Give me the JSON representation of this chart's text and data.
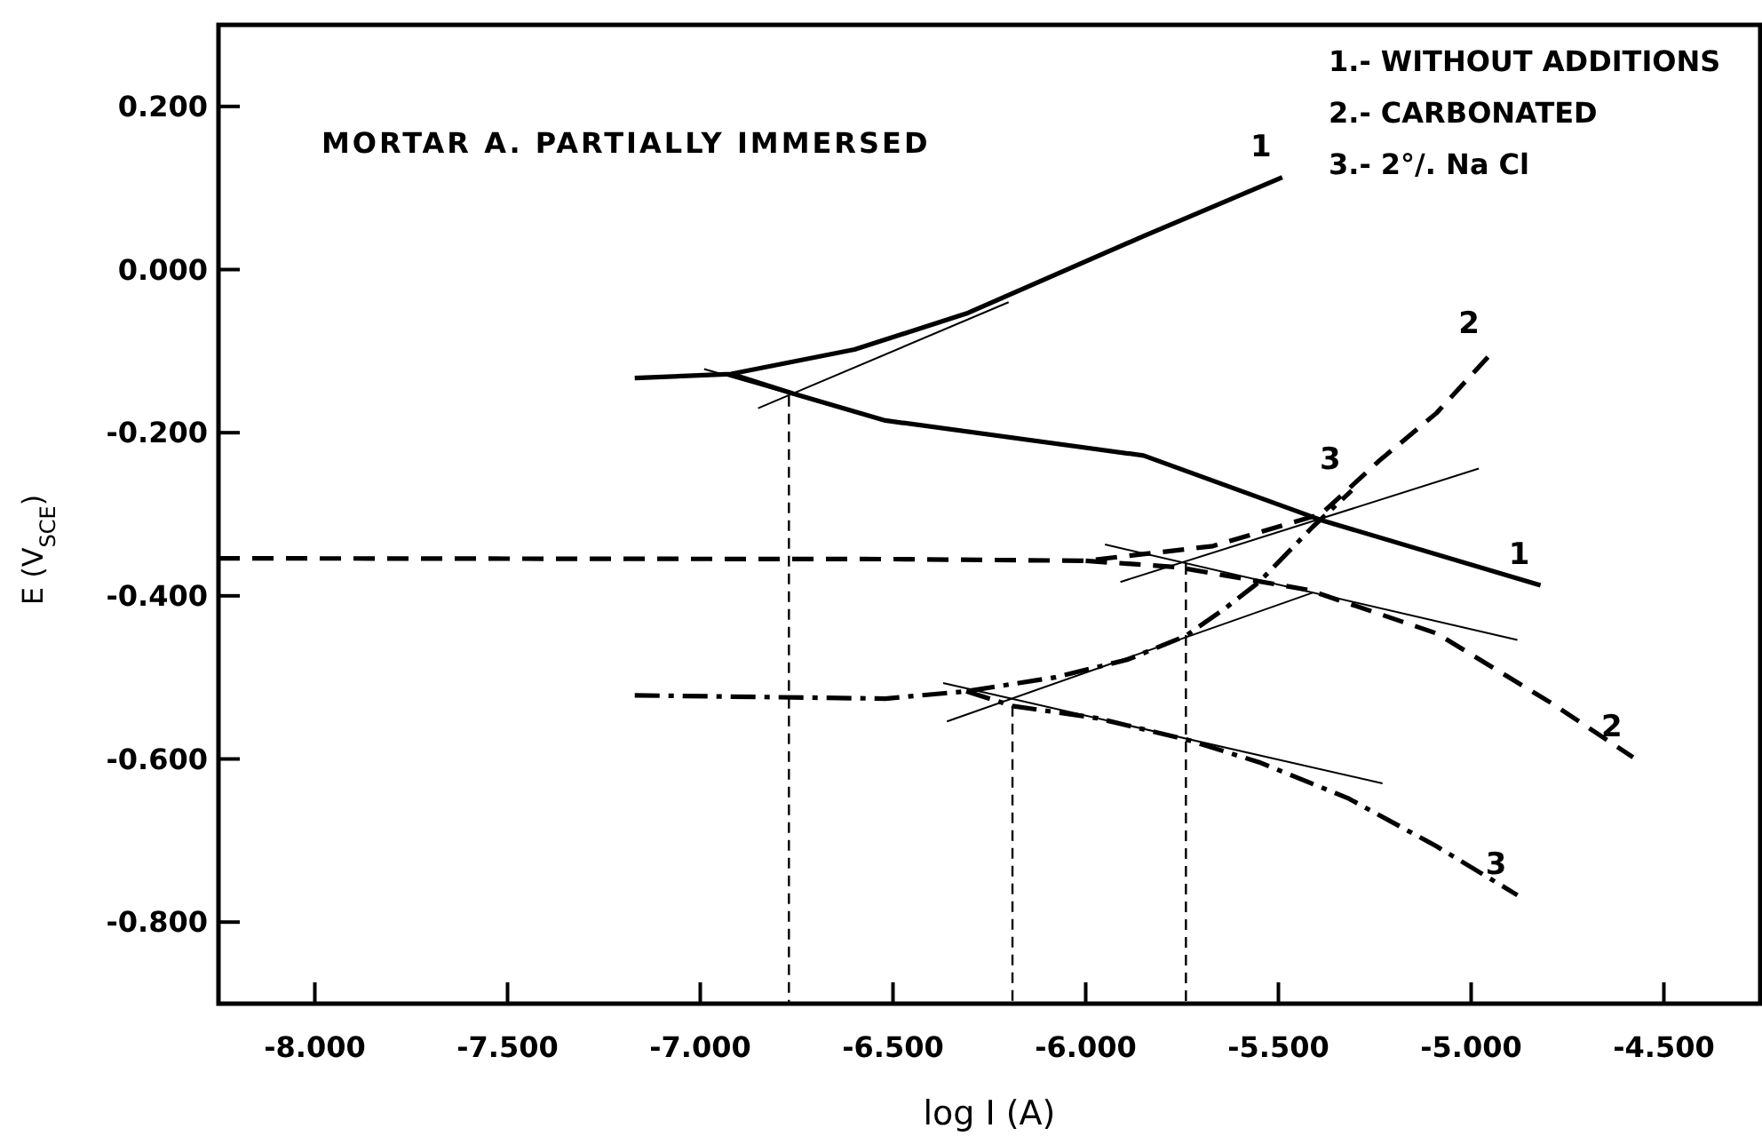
{
  "chart_data": {
    "type": "line",
    "title": "MORTAR A. PARTIALLY IMMERSED",
    "xlabel": "log I (A)",
    "ylabel": "E (V$_{SCE}$)",
    "xlim": [
      -8.25,
      -4.25
    ],
    "ylim": [
      -0.9,
      0.3
    ],
    "xticks": [
      {
        "value": -8,
        "label": "-8.000"
      },
      {
        "value": -7.5,
        "label": "-7.500"
      },
      {
        "value": -7,
        "label": "-7.000"
      },
      {
        "value": -6.5,
        "label": "-6.500"
      },
      {
        "value": -6,
        "label": "-6.000"
      },
      {
        "value": -5.5,
        "label": "-5.500"
      },
      {
        "value": -5,
        "label": "-5.000"
      },
      {
        "value": -4.5,
        "label": "-4.500"
      }
    ],
    "yticks": [
      {
        "value": 0.2,
        "label": "0.200"
      },
      {
        "value": 0,
        "label": "0.000"
      },
      {
        "value": -0.2,
        "label": "-0.200"
      },
      {
        "value": -0.4,
        "label": "-0.400"
      },
      {
        "value": -0.6,
        "label": "-0.600"
      },
      {
        "value": -0.8,
        "label": "-0.800"
      }
    ],
    "grid": false,
    "marker": "none",
    "series": [
      {
        "name": "1",
        "color": "#000000",
        "line_style": "solid",
        "x": [
          -7.17,
          -6.92,
          -6.6,
          -6.31,
          -5.85,
          -5.49
        ],
        "values": [
          -0.133,
          -0.128,
          -0.098,
          -0.054,
          0.041,
          0.113
        ]
      },
      {
        "name": "1",
        "color": "#000000",
        "line_style": "solid",
        "x": [
          -6.92,
          -6.76,
          -6.52,
          -5.85,
          -5.39,
          -4.82
        ],
        "values": [
          -0.128,
          -0.152,
          -0.185,
          -0.228,
          -0.307,
          -0.387
        ]
      },
      {
        "name": "2",
        "color": "#000000",
        "line_style": "dashed",
        "x": [
          -8.25,
          -6.5,
          -6.0,
          -5.67,
          -5.39,
          -5.24,
          -5.09,
          -4.95
        ],
        "values": [
          -0.354,
          -0.355,
          -0.357,
          -0.339,
          -0.3,
          -0.235,
          -0.176,
          -0.104
        ]
      },
      {
        "name": "2",
        "color": "#000000",
        "line_style": "dashed",
        "x": [
          -6.0,
          -5.76,
          -5.42,
          -5.09,
          -4.79,
          -4.58
        ],
        "values": [
          -0.357,
          -0.365,
          -0.393,
          -0.446,
          -0.532,
          -0.598
        ]
      },
      {
        "name": "3",
        "color": "#000000",
        "line_style": "dashdot",
        "x": [
          -7.17,
          -6.52,
          -6.31,
          -6.08,
          -5.89,
          -5.74,
          -5.64,
          -5.55,
          -5.41,
          -5.31
        ],
        "values": [
          -0.522,
          -0.526,
          -0.517,
          -0.5,
          -0.478,
          -0.449,
          -0.416,
          -0.383,
          -0.315,
          -0.271
        ]
      },
      {
        "name": "3",
        "color": "#000000",
        "line_style": "dashdot",
        "x": [
          -6.31,
          -6.19,
          -5.97,
          -5.74,
          -5.55,
          -5.32,
          -5.09,
          -4.88
        ],
        "values": [
          -0.517,
          -0.535,
          -0.55,
          -0.576,
          -0.604,
          -0.648,
          -0.707,
          -0.767
        ]
      },
      {
        "color": "#000000",
        "line_style": "solid",
        "x": [
          -6.85,
          -6.2
        ],
        "values": [
          -0.17,
          -0.04
        ]
      },
      {
        "color": "#000000",
        "line_style": "solid",
        "x": [
          -6.99,
          -6.6
        ],
        "values": [
          -0.122,
          -0.175
        ]
      },
      {
        "color": "#000000",
        "line_style": "solid",
        "x": [
          -5.91,
          -4.98
        ],
        "values": [
          -0.383,
          -0.244
        ]
      },
      {
        "color": "#000000",
        "line_style": "solid",
        "x": [
          -5.95,
          -4.88
        ],
        "values": [
          -0.337,
          -0.454
        ]
      },
      {
        "color": "#000000",
        "line_style": "solid",
        "x": [
          -6.37,
          -5.23
        ],
        "values": [
          -0.507,
          -0.63
        ]
      },
      {
        "color": "#000000",
        "line_style": "solid",
        "x": [
          -6.36,
          -5.41
        ],
        "values": [
          -0.554,
          -0.396
        ]
      },
      {
        "color": "#000000",
        "line_style": "dashed",
        "x": [
          -6.77,
          -6.77
        ],
        "values": [
          -0.155,
          -0.9
        ]
      },
      {
        "color": "#000000",
        "line_style": "dashed",
        "x": [
          -6.19,
          -6.19
        ],
        "values": [
          -0.535,
          -0.9
        ]
      },
      {
        "color": "#000000",
        "line_style": "dashed",
        "x": [
          -5.74,
          -5.74
        ],
        "values": [
          -0.361,
          -0.9
        ]
      }
    ],
    "annotations": [
      "1.- WITHOUT ADDITIONS",
      "2.- CARBONATED",
      "3.- 2°/. Na Cl"
    ]
  }
}
